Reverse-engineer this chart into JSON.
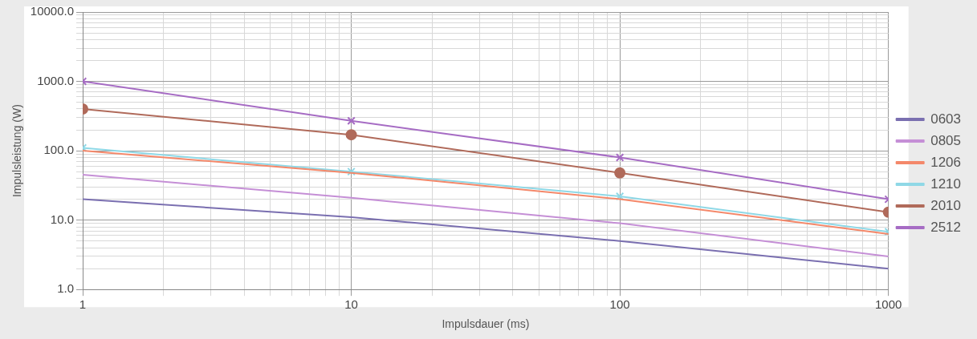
{
  "chart_data": {
    "type": "line",
    "xlabel": "Impulsdauer (ms)",
    "ylabel": "Impulsleistung (W)",
    "x": [
      1,
      10,
      100,
      1000
    ],
    "series": [
      {
        "name": "0603",
        "color": "#7a6fb0",
        "values": [
          20,
          11,
          5,
          2
        ],
        "marker": "none"
      },
      {
        "name": "0805",
        "color": "#c58fd6",
        "values": [
          45,
          21,
          9,
          3
        ],
        "marker": "none"
      },
      {
        "name": "1206",
        "color": "#f4886a",
        "values": [
          100,
          48,
          20,
          6.3
        ],
        "marker": "none"
      },
      {
        "name": "1210",
        "color": "#8fd8e6",
        "values": [
          110,
          50,
          22,
          6.8
        ],
        "marker": "cross"
      },
      {
        "name": "2010",
        "color": "#b06a5a",
        "values": [
          400,
          170,
          48,
          13
        ],
        "marker": "circle"
      },
      {
        "name": "2512",
        "color": "#a66cc4",
        "values": [
          1000,
          270,
          80,
          20
        ],
        "marker": "cross"
      }
    ],
    "log": "xy",
    "xlim": [
      1,
      1000
    ],
    "ylim": [
      1,
      10000
    ],
    "xticks": [
      1,
      {
        "value": 2,
        "label": null
      },
      {
        "value": 3,
        "label": null
      },
      {
        "value": 4,
        "label": null
      },
      {
        "value": 5,
        "label": null
      },
      {
        "value": 6,
        "label": null
      },
      {
        "value": 7,
        "label": null
      },
      {
        "value": 8,
        "label": null
      },
      {
        "value": 9,
        "label": null
      },
      10,
      {
        "value": 20,
        "label": null
      },
      {
        "value": 30,
        "label": null
      },
      {
        "value": 40,
        "label": null
      },
      {
        "value": 50,
        "label": null
      },
      {
        "value": 60,
        "label": null
      },
      {
        "value": 70,
        "label": null
      },
      {
        "value": 80,
        "label": null
      },
      {
        "value": 90,
        "label": null
      },
      100,
      {
        "value": 200,
        "label": null
      },
      {
        "value": 300,
        "label": null
      },
      {
        "value": 400,
        "label": null
      },
      {
        "value": 500,
        "label": null
      },
      {
        "value": 600,
        "label": null
      },
      {
        "value": 700,
        "label": null
      },
      {
        "value": 800,
        "label": null
      },
      {
        "value": 900,
        "label": null
      },
      1000
    ],
    "yticks": [
      {
        "value": 1,
        "label": "1.0"
      },
      {
        "value": 2,
        "label": null
      },
      {
        "value": 3,
        "label": null
      },
      {
        "value": 4,
        "label": null
      },
      {
        "value": 5,
        "label": null
      },
      {
        "value": 6,
        "label": null
      },
      {
        "value": 7,
        "label": null
      },
      {
        "value": 8,
        "label": null
      },
      {
        "value": 9,
        "label": null
      },
      {
        "value": 10,
        "label": "10.0"
      },
      {
        "value": 20,
        "label": null
      },
      {
        "value": 30,
        "label": null
      },
      {
        "value": 40,
        "label": null
      },
      {
        "value": 50,
        "label": null
      },
      {
        "value": 60,
        "label": null
      },
      {
        "value": 70,
        "label": null
      },
      {
        "value": 80,
        "label": null
      },
      {
        "value": 90,
        "label": null
      },
      {
        "value": 100,
        "label": "100.0"
      },
      {
        "value": 200,
        "label": null
      },
      {
        "value": 300,
        "label": null
      },
      {
        "value": 400,
        "label": null
      },
      {
        "value": 500,
        "label": null
      },
      {
        "value": 600,
        "label": null
      },
      {
        "value": 700,
        "label": null
      },
      {
        "value": 800,
        "label": null
      },
      {
        "value": 900,
        "label": null
      },
      {
        "value": 1000,
        "label": "1000.0"
      },
      {
        "value": 2000,
        "label": null
      },
      {
        "value": 3000,
        "label": null
      },
      {
        "value": 4000,
        "label": null
      },
      {
        "value": 5000,
        "label": null
      },
      {
        "value": 6000,
        "label": null
      },
      {
        "value": 7000,
        "label": null
      },
      {
        "value": 8000,
        "label": null
      },
      {
        "value": 9000,
        "label": null
      },
      {
        "value": 10000,
        "label": "10000.0"
      }
    ],
    "grid": true,
    "legend": "right"
  }
}
